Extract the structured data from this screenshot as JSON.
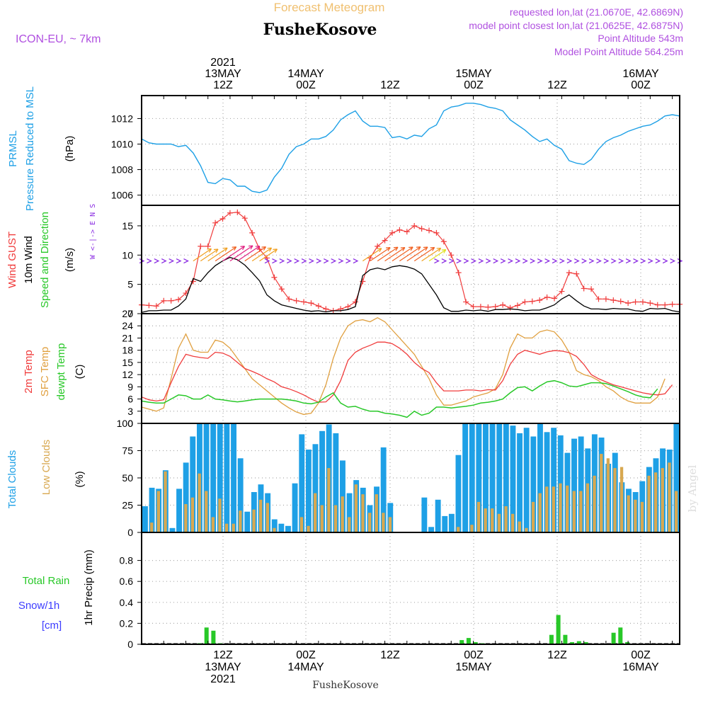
{
  "header": {
    "top_title": "Forecast Meteogram",
    "location_title": "FusheKosove",
    "model": "ICON-EU, ~ 7km",
    "requested": "requested lon,lat (21.0670E, 42.6869N)",
    "closest": "model point closest lon,lat (21.0625E, 42.6875N)",
    "point_altitude": "Point Altitude 543m",
    "model_altitude": "Model Point Altitude 564.25m",
    "bottom_location": "FusheKosove",
    "watermark": "by Angel"
  },
  "time_axis": {
    "top_labels": [
      {
        "slot": 0,
        "lines": [
          "2021",
          "13MAY",
          "12Z"
        ]
      },
      {
        "slot": 1,
        "lines": [
          "14MAY",
          "00Z"
        ]
      },
      {
        "slot": 2,
        "lines": [
          "12Z"
        ]
      },
      {
        "slot": 3,
        "lines": [
          "15MAY",
          "00Z"
        ]
      },
      {
        "slot": 4,
        "lines": [
          "12Z"
        ]
      },
      {
        "slot": 5,
        "lines": [
          "16MAY",
          "00Z"
        ]
      }
    ],
    "bottom_labels": [
      {
        "slot": 0,
        "lines": [
          "12Z",
          "13MAY",
          "2021"
        ]
      },
      {
        "slot": 1,
        "lines": [
          "00Z",
          "14MAY"
        ]
      },
      {
        "slot": 2,
        "lines": [
          "12Z"
        ]
      },
      {
        "slot": 3,
        "lines": [
          "00Z",
          "15MAY"
        ]
      },
      {
        "slot": 4,
        "lines": [
          "12Z"
        ]
      },
      {
        "slot": 5,
        "lines": [
          "00Z",
          "16MAY"
        ]
      }
    ]
  },
  "colors": {
    "pressure": "#1ea0e6",
    "gust": "#f03c3c",
    "wind": "#000000",
    "t2m": "#f03c3c",
    "sfc": "#e0a040",
    "dewpt": "#28c828",
    "total_clouds": "#1ea0e6",
    "low_clouds": "#d8a850",
    "rain": "#28c828",
    "snow": "#3c3cff",
    "header_purple": "#b050e0",
    "header_orange": "#f0c070",
    "dir_purple": "#8a2be2"
  },
  "chart_data": [
    {
      "type": "line",
      "title": "PRMSL Pressure Reduced to MSL",
      "ylabel_left": [
        "PRMSL",
        "Pressure Reduced to MSL"
      ],
      "ylabel_unit": "(hPa)",
      "ylim": [
        1005.2,
        1013.8
      ],
      "yticks": [
        1006,
        1008,
        1010,
        1012
      ],
      "x_hours_from": 0,
      "series": [
        {
          "name": "PRMSL",
          "values": [
            1010.4,
            1010.1,
            1010.0,
            1010.0,
            1010.0,
            1009.8,
            1009.9,
            1009.3,
            1008.3,
            1007.0,
            1006.9,
            1007.3,
            1007.2,
            1006.7,
            1006.7,
            1006.3,
            1006.2,
            1006.4,
            1007.4,
            1008.1,
            1009.2,
            1009.8,
            1010.0,
            1010.4,
            1010.4,
            1010.6,
            1011.1,
            1011.9,
            1012.3,
            1012.6,
            1011.8,
            1011.4,
            1011.4,
            1011.3,
            1010.5,
            1010.6,
            1010.4,
            1010.7,
            1010.6,
            1011.2,
            1011.5,
            1012.6,
            1012.9,
            1013.0,
            1013.2,
            1013.2,
            1013.1,
            1012.9,
            1012.8,
            1012.6,
            1011.9,
            1011.5,
            1011.1,
            1010.6,
            1010.2,
            1010.4,
            1009.9,
            1009.6,
            1008.7,
            1008.5,
            1008.4,
            1008.8,
            1009.6,
            1010.2,
            1010.5,
            1010.7,
            1011.0,
            1011.2,
            1011.4,
            1011.5,
            1011.8,
            1012.2,
            1012.3,
            1012.2
          ]
        }
      ]
    },
    {
      "type": "line",
      "title": "Wind GUST / 10m Wind Speed and Direction",
      "ylabel_left": [
        "Wind GUST",
        "10m Wind",
        "Speed and Direction"
      ],
      "ylabel_unit": "(m/s)",
      "compass": "W <-|-> E  N S",
      "ylim": [
        0,
        18.5
      ],
      "yticks": [
        0,
        5,
        10,
        15
      ],
      "series": [
        {
          "name": "Wind GUST",
          "values": [
            1.5,
            1.4,
            1.3,
            2.2,
            2.2,
            2.4,
            3.5,
            5.5,
            11.5,
            11.5,
            15.5,
            16.2,
            17.2,
            17.3,
            16.3,
            13.8,
            11.0,
            9.5,
            6.2,
            4.2,
            2.5,
            2.2,
            2.0,
            1.8,
            1.3,
            0.8,
            0.5,
            0.8,
            1.2,
            2.0,
            5.5,
            9.5,
            11.5,
            12.5,
            13.8,
            14.3,
            14.0,
            15.0,
            14.5,
            14.2,
            13.8,
            12.3,
            10.0,
            7.0,
            2.0,
            1.2,
            1.2,
            1.1,
            1.2,
            1.5,
            1.0,
            1.4,
            2.0,
            2.1,
            2.3,
            2.8,
            2.6,
            3.8,
            7.0,
            6.8,
            4.3,
            4.2,
            2.5,
            2.5,
            2.3,
            2.1,
            1.8,
            2.0,
            2.0,
            1.8,
            1.5,
            1.5,
            1.6,
            1.6
          ]
        },
        {
          "name": "10m Wind",
          "values": [
            0.2,
            0.5,
            0.5,
            0.6,
            0.6,
            1.3,
            2.5,
            6.0,
            5.5,
            7.0,
            8.2,
            9.0,
            9.6,
            9.2,
            8.3,
            7.0,
            5.6,
            3.2,
            2.2,
            1.5,
            1.2,
            0.9,
            0.6,
            0.4,
            0.5,
            0.3,
            0.5,
            0.5,
            0.7,
            1.2,
            6.5,
            7.5,
            7.8,
            7.5,
            8.0,
            8.2,
            8.0,
            7.6,
            6.8,
            5.0,
            3.2,
            1.0,
            0.4,
            0.4,
            0.6,
            0.5,
            0.6,
            0.4,
            0.7,
            0.7,
            0.8,
            0.7,
            0.5,
            0.6,
            0.6,
            1.0,
            1.5,
            2.5,
            3.2,
            2.2,
            1.3,
            0.8,
            0.8,
            0.7,
            0.9,
            0.8,
            0.8,
            0.5,
            0.4,
            0.9,
            0.8,
            0.9,
            0.5,
            0.3
          ]
        }
      ]
    },
    {
      "type": "line",
      "title": "2m Temp / SFC Temp / dewpt Temp",
      "ylabel_left": [
        "2m Temp",
        "SFC Temp",
        "dewpt Temp"
      ],
      "ylabel_unit": "(C)",
      "ylim": [
        0,
        27
      ],
      "yticks": [
        0,
        3,
        6,
        9,
        12,
        15,
        18,
        21,
        24,
        27
      ],
      "series": [
        {
          "name": "2m Temp",
          "values": [
            6.5,
            5.8,
            5.5,
            5.8,
            10.0,
            14.0,
            17.0,
            16.5,
            16.2,
            16.0,
            17.5,
            17.3,
            16.5,
            15.0,
            13.5,
            12.8,
            12.0,
            11.0,
            10.2,
            9.0,
            8.5,
            7.8,
            7.0,
            6.0,
            5.2,
            5.3,
            7.0,
            10.5,
            15.5,
            17.5,
            18.5,
            19.2,
            20.0,
            20.0,
            19.6,
            18.5,
            17.0,
            15.0,
            13.5,
            12.5,
            10.0,
            8.0,
            8.0,
            8.0,
            8.2,
            8.2,
            8.0,
            8.3,
            8.2,
            10.5,
            14.5,
            17.0,
            18.0,
            17.5,
            17.0,
            17.6,
            17.9,
            17.8,
            17.4,
            16.5,
            14.5,
            12.0,
            11.0,
            10.2,
            9.5,
            9.0,
            8.5,
            8.0,
            7.5,
            7.2,
            7.0,
            7.3,
            9.5
          ]
        },
        {
          "name": "SFC Temp",
          "values": [
            4.0,
            3.5,
            3.0,
            3.8,
            11.0,
            18.5,
            22.0,
            18.0,
            17.5,
            17.5,
            20.5,
            20.0,
            18.5,
            16.0,
            13.5,
            11.0,
            9.5,
            8.0,
            6.5,
            5.0,
            3.8,
            2.8,
            2.2,
            2.5,
            5.0,
            9.5,
            16.0,
            21.0,
            24.0,
            25.2,
            25.5,
            25.0,
            26.0,
            25.0,
            23.0,
            21.0,
            19.0,
            17.0,
            14.0,
            11.0,
            7.0,
            4.5,
            4.5,
            5.0,
            5.5,
            6.5,
            7.0,
            7.5,
            8.5,
            12.0,
            18.5,
            22.0,
            21.0,
            21.0,
            22.5,
            23.0,
            22.5,
            20.5,
            17.5,
            13.0,
            12.0,
            11.5,
            10.5,
            9.0,
            8.0,
            6.5,
            5.5,
            5.0,
            5.0,
            5.0,
            6.5,
            11.0
          ]
        },
        {
          "name": "dewpt Temp",
          "values": [
            5.5,
            5.2,
            5.0,
            5.0,
            6.0,
            7.0,
            6.8,
            6.0,
            6.0,
            7.0,
            6.0,
            5.8,
            5.5,
            5.3,
            5.5,
            5.8,
            6.0,
            6.0,
            6.0,
            6.0,
            5.8,
            5.5,
            5.0,
            4.8,
            5.2,
            6.5,
            7.5,
            5.0,
            4.0,
            4.2,
            3.5,
            3.0,
            3.0,
            2.5,
            2.3,
            2.0,
            1.5,
            3.0,
            2.0,
            2.5,
            4.0,
            4.0,
            3.8,
            4.0,
            4.2,
            4.5,
            5.0,
            5.2,
            5.5,
            6.0,
            7.5,
            8.8,
            9.0,
            8.0,
            9.2,
            10.2,
            10.5,
            10.0,
            9.2,
            9.0,
            9.5,
            10.0,
            10.0,
            9.8,
            9.2,
            8.5,
            7.8,
            7.0,
            6.5,
            6.3,
            8.5
          ]
        }
      ]
    },
    {
      "type": "bar",
      "title": "Total Clouds / Low Clouds",
      "ylabel_left": [
        "Total Clouds",
        "Low Clouds"
      ],
      "ylabel_unit": "(%)",
      "ylim": [
        0,
        100
      ],
      "yticks": [
        0,
        25,
        50,
        75,
        100
      ],
      "series": [
        {
          "name": "Total Clouds",
          "values": [
            24,
            41,
            40,
            57,
            4,
            40,
            64,
            88,
            100,
            100,
            100,
            100,
            100,
            100,
            68,
            19,
            37,
            44,
            36,
            12,
            8,
            6,
            45,
            90,
            76,
            81,
            93,
            99,
            91,
            66,
            36,
            48,
            41,
            25,
            42,
            78,
            27,
            0,
            0,
            0,
            0,
            32,
            5,
            30,
            15,
            17,
            71,
            100,
            100,
            100,
            100,
            100,
            100,
            100,
            98,
            91,
            96,
            88,
            100,
            92,
            96,
            89,
            73,
            86,
            88,
            77,
            90,
            87,
            63,
            73,
            46,
            40,
            37,
            47,
            60,
            68,
            77,
            76,
            100
          ]
        },
        {
          "name": "Low Clouds",
          "values": [
            0,
            9,
            38,
            56,
            0,
            0,
            26,
            32,
            54,
            38,
            14,
            31,
            8,
            8,
            20,
            0,
            21,
            30,
            27,
            4,
            0,
            0,
            0,
            14,
            6,
            36,
            25,
            59,
            25,
            33,
            14,
            44,
            35,
            18,
            35,
            18,
            14,
            0,
            0,
            0,
            0,
            0,
            0,
            0,
            0,
            0,
            5,
            0,
            7,
            28,
            22,
            22,
            17,
            24,
            17,
            10,
            4,
            28,
            36,
            42,
            42,
            45,
            43,
            38,
            38,
            45,
            52,
            72,
            68,
            59,
            60,
            34,
            30,
            28,
            52,
            55,
            59,
            64,
            38
          ]
        }
      ]
    },
    {
      "type": "bar",
      "title": "1hr Precip",
      "ylabel_left": [
        "Total Rain",
        "Snow/1h",
        "[cm]"
      ],
      "ylabel_unit": "1hr Precip (mm)",
      "ylim": [
        0,
        1.0
      ],
      "yticks": [
        0,
        0.2,
        0.4,
        0.6,
        0.8
      ],
      "series": [
        {
          "name": "Total Rain",
          "values": [
            0,
            0,
            0,
            0,
            0,
            0,
            0,
            0,
            0.01,
            0.16,
            0.13,
            0.01,
            0,
            0,
            0,
            0,
            0,
            0,
            0,
            0,
            0,
            0,
            0,
            0,
            0,
            0,
            0,
            0,
            0,
            0,
            0,
            0,
            0,
            0,
            0,
            0,
            0,
            0,
            0,
            0,
            0,
            0,
            0,
            0,
            0,
            0,
            0.04,
            0.06,
            0.02,
            0.01,
            0,
            0,
            0,
            0,
            0,
            0,
            0,
            0,
            0,
            0.09,
            0.28,
            0.09,
            0.02,
            0.03,
            0.02,
            0,
            0,
            0,
            0.11,
            0.16,
            0.02,
            0,
            0,
            0,
            0,
            0,
            0,
            0
          ]
        }
      ]
    }
  ]
}
